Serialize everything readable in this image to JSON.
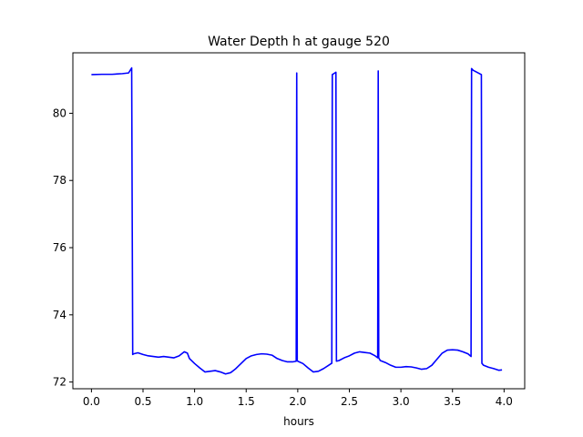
{
  "chart_data": {
    "type": "line",
    "title": "Water Depth h at gauge 520",
    "xlabel": "hours",
    "ylabel": "",
    "xlim": [
      -0.18,
      4.2
    ],
    "ylim": [
      71.8,
      81.8
    ],
    "xticks": [
      0.0,
      0.5,
      1.0,
      1.5,
      2.0,
      2.5,
      3.0,
      3.5,
      4.0
    ],
    "xtick_labels": [
      "0.0",
      "0.5",
      "1.0",
      "1.5",
      "2.0",
      "2.5",
      "3.0",
      "3.5",
      "4.0"
    ],
    "yticks": [
      72,
      74,
      76,
      78,
      80
    ],
    "ytick_labels": [
      "72",
      "74",
      "76",
      "78",
      "80"
    ],
    "grid": false,
    "series": [
      {
        "color": "#0000ff",
        "x": [
          0.0,
          0.1,
          0.2,
          0.3,
          0.36,
          0.39,
          0.4,
          0.41,
          0.45,
          0.5,
          0.55,
          0.6,
          0.65,
          0.7,
          0.75,
          0.8,
          0.85,
          0.9,
          0.93,
          0.95,
          1.0,
          1.05,
          1.1,
          1.15,
          1.2,
          1.25,
          1.3,
          1.35,
          1.4,
          1.45,
          1.5,
          1.55,
          1.6,
          1.65,
          1.7,
          1.75,
          1.8,
          1.85,
          1.9,
          1.95,
          1.985,
          1.99,
          1.995,
          2.0,
          2.05,
          2.1,
          2.15,
          2.2,
          2.25,
          2.3,
          2.33,
          2.335,
          2.36,
          2.37,
          2.375,
          2.4,
          2.45,
          2.5,
          2.55,
          2.6,
          2.65,
          2.7,
          2.75,
          2.775,
          2.78,
          2.785,
          2.8,
          2.85,
          2.9,
          2.95,
          3.0,
          3.05,
          3.1,
          3.15,
          3.2,
          3.25,
          3.3,
          3.35,
          3.4,
          3.45,
          3.5,
          3.55,
          3.6,
          3.65,
          3.68,
          3.685,
          3.7,
          3.78,
          3.785,
          3.8,
          3.85,
          3.9,
          3.95,
          3.98
        ],
        "y": [
          81.15,
          81.16,
          81.16,
          81.18,
          81.2,
          81.35,
          72.82,
          72.84,
          72.87,
          72.82,
          72.78,
          72.76,
          72.74,
          72.76,
          72.74,
          72.72,
          72.78,
          72.9,
          72.86,
          72.7,
          72.55,
          72.42,
          72.3,
          72.32,
          72.34,
          72.3,
          72.24,
          72.28,
          72.4,
          72.55,
          72.7,
          72.78,
          72.82,
          72.84,
          72.83,
          72.8,
          72.7,
          72.64,
          72.6,
          72.6,
          72.62,
          81.2,
          72.64,
          72.62,
          72.55,
          72.42,
          72.3,
          72.32,
          72.4,
          72.5,
          72.56,
          81.15,
          81.2,
          81.22,
          72.62,
          72.64,
          72.72,
          72.78,
          72.86,
          72.9,
          72.88,
          72.86,
          72.78,
          72.72,
          81.26,
          72.72,
          72.64,
          72.58,
          72.5,
          72.44,
          72.44,
          72.46,
          72.45,
          72.42,
          72.38,
          72.4,
          72.5,
          72.68,
          72.86,
          72.95,
          72.96,
          72.95,
          72.9,
          72.84,
          72.76,
          81.33,
          81.28,
          81.15,
          72.56,
          72.5,
          72.44,
          72.4,
          72.35,
          72.36
        ]
      }
    ]
  }
}
